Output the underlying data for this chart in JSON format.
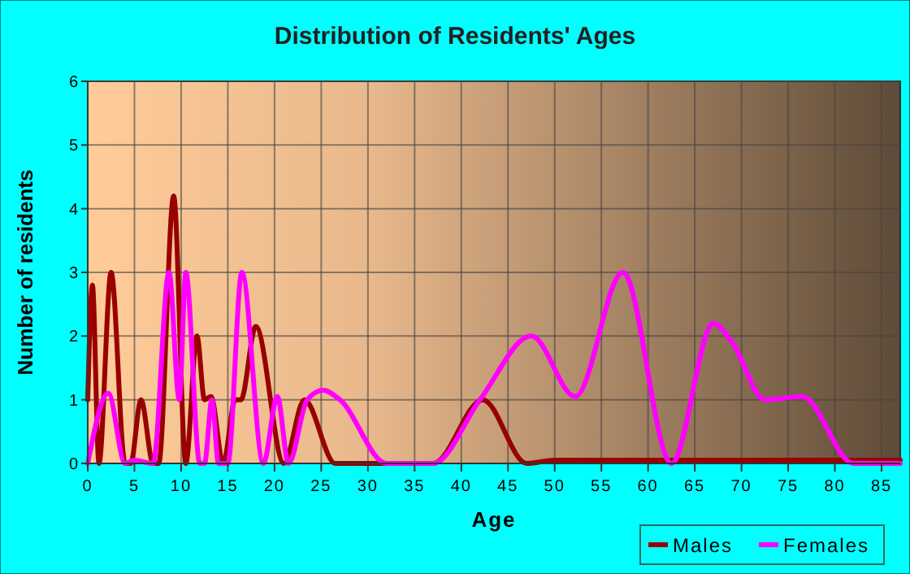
{
  "chart_data": {
    "type": "line",
    "title": "Distribution of Residents' Ages",
    "xlabel": "Age",
    "ylabel": "Number of residents",
    "xlim": [
      0,
      87
    ],
    "xticks": [
      0,
      5,
      10,
      15,
      20,
      25,
      30,
      35,
      40,
      45,
      50,
      55,
      60,
      65,
      70,
      75,
      80,
      85
    ],
    "ylim": [
      0,
      6
    ],
    "yticks": [
      0,
      1,
      2,
      3,
      4,
      5,
      6
    ],
    "grid": true,
    "legend": "bottom right",
    "marker": "none",
    "line_style": "solid",
    "series": [
      {
        "name": "Males",
        "color": "#990000",
        "x": [
          0,
          0.5,
          1.2,
          2.5,
          4,
          4.6,
          5.7,
          7,
          7.6,
          9.2,
          10.5,
          11.7,
          12.5,
          13.2,
          14.5,
          15.8,
          16.4,
          18,
          21,
          23.2,
          26.5,
          37,
          42.3,
          47,
          50,
          87
        ],
        "values": [
          1,
          2.8,
          0,
          3,
          0,
          0,
          1,
          0,
          0,
          4.2,
          0,
          2,
          1,
          1.05,
          0,
          1,
          1,
          2.15,
          0,
          1,
          0,
          0,
          1,
          0,
          0.05,
          0.05
        ]
      },
      {
        "name": "Females",
        "color": "#ff00ff",
        "x": [
          0,
          2.2,
          4,
          5,
          7,
          8.7,
          9.8,
          10.5,
          12,
          12.5,
          13.3,
          14,
          15,
          16.5,
          18.8,
          20.3,
          21.5,
          23.5,
          25.2,
          27,
          32,
          37,
          42,
          47.5,
          52.2,
          57.3,
          62.5,
          67,
          69,
          72.5,
          76.5,
          82,
          87
        ],
        "values": [
          0,
          1.1,
          0,
          0.05,
          0,
          3,
          1,
          3,
          0,
          0,
          1,
          0,
          0,
          3,
          0,
          1.05,
          0,
          1,
          1.15,
          1,
          0,
          0,
          1,
          2,
          1.05,
          3,
          0,
          2.2,
          1.9,
          1,
          1.05,
          0,
          0
        ]
      }
    ]
  }
}
